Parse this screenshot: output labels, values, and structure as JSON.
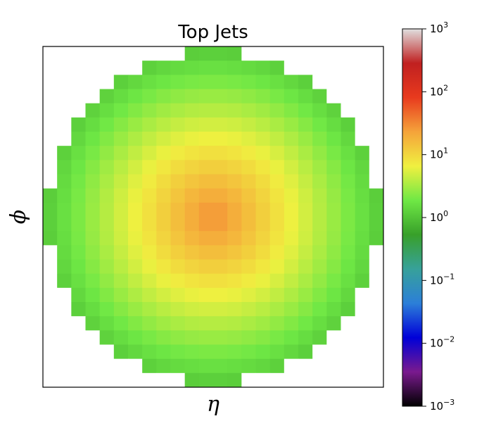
{
  "chart_data": {
    "type": "heatmap",
    "title": "Top Jets",
    "xlabel": "η",
    "ylabel": "ϕ",
    "colorscale": "log",
    "colorbar": {
      "ticks": [
        {
          "base": "10",
          "exp": "3"
        },
        {
          "base": "10",
          "exp": "2"
        },
        {
          "base": "10",
          "exp": "1"
        },
        {
          "base": "10",
          "exp": "0"
        },
        {
          "base": "10",
          "exp": "−1"
        },
        {
          "base": "10",
          "exp": "−2"
        },
        {
          "base": "10",
          "exp": "−3"
        }
      ],
      "range": [
        0.001,
        1000
      ],
      "stops": [
        "#000000",
        "#7a1a8e",
        "#0000d8",
        "#2c7fd8",
        "#37a19a",
        "#38a02a",
        "#6fe845",
        "#f0f040",
        "#f5a33a",
        "#e83a1e",
        "#c02020",
        "#e0e0e0"
      ]
    },
    "grid_size": 24,
    "center": [
      11.5,
      11.5
    ],
    "peak_value": 30,
    "falloff_scale": 3.6,
    "disk_radius": 11.6,
    "empty_color": "#ffffff"
  }
}
